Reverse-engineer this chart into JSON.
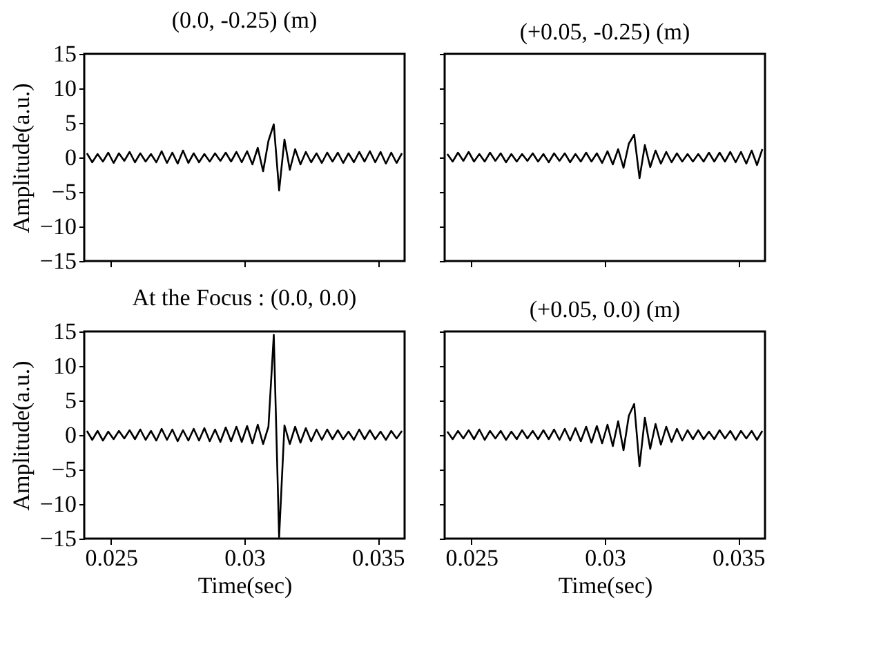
{
  "chart_data": [
    {
      "type": "line",
      "title": "(0.0, -0.25) (m)",
      "ylabel": "Amplitude(a.u.)",
      "tick_labels": "y",
      "xlim": [
        0.024,
        0.036
      ],
      "xticks": [
        0.025,
        0.03,
        0.035
      ],
      "ylim": [
        -15,
        15
      ],
      "yticks": [
        -15,
        -10,
        -5,
        0,
        5,
        10,
        15
      ],
      "x": [
        0.0241,
        0.0243,
        0.0245,
        0.0247,
        0.0249,
        0.0251,
        0.0253,
        0.0255,
        0.0257,
        0.0259,
        0.0261,
        0.0263,
        0.0265,
        0.0267,
        0.0269,
        0.0271,
        0.0273,
        0.0275,
        0.0277,
        0.0279,
        0.0281,
        0.0283,
        0.0285,
        0.0287,
        0.0289,
        0.0291,
        0.0293,
        0.0295,
        0.0297,
        0.0299,
        0.0301,
        0.0303,
        0.0305,
        0.0307,
        0.0309,
        0.0311,
        0.0313,
        0.0315,
        0.0317,
        0.0319,
        0.0321,
        0.0323,
        0.0325,
        0.0327,
        0.0329,
        0.0331,
        0.0333,
        0.0335,
        0.0337,
        0.0339,
        0.0341,
        0.0343,
        0.0345,
        0.0347,
        0.0349,
        0.0351,
        0.0353,
        0.0355,
        0.0357,
        0.0359
      ],
      "series": [
        {
          "color": "#000000",
          "values": [
            0.6,
            -0.7,
            0.5,
            -0.6,
            0.7,
            -0.8,
            0.6,
            -0.5,
            0.8,
            -0.7,
            0.6,
            -0.6,
            0.5,
            -0.7,
            0.9,
            -0.8,
            0.7,
            -0.9,
            1.0,
            -0.8,
            0.6,
            -0.7,
            0.5,
            -0.6,
            0.6,
            -0.5,
            0.7,
            -0.6,
            0.8,
            -0.7,
            0.9,
            -1.0,
            1.4,
            -2.0,
            2.4,
            4.8,
            -4.8,
            2.6,
            -1.8,
            1.2,
            -1.0,
            0.8,
            -0.7,
            0.6,
            -0.8,
            0.7,
            -0.6,
            0.7,
            -0.8,
            0.6,
            -0.7,
            0.8,
            -0.6,
            0.9,
            -0.7,
            0.8,
            -0.9,
            0.7,
            -0.8,
            0.6
          ]
        }
      ]
    },
    {
      "type": "line",
      "title": "(+0.05, -0.25) (m)",
      "tick_labels": false,
      "xlim": [
        0.024,
        0.036
      ],
      "xticks": [
        0.025,
        0.03,
        0.035
      ],
      "ylim": [
        -15,
        15
      ],
      "yticks": [
        -15,
        -10,
        -5,
        0,
        5,
        10,
        15
      ],
      "x": [
        0.0241,
        0.0243,
        0.0245,
        0.0247,
        0.0249,
        0.0251,
        0.0253,
        0.0255,
        0.0257,
        0.0259,
        0.0261,
        0.0263,
        0.0265,
        0.0267,
        0.0269,
        0.0271,
        0.0273,
        0.0275,
        0.0277,
        0.0279,
        0.0281,
        0.0283,
        0.0285,
        0.0287,
        0.0289,
        0.0291,
        0.0293,
        0.0295,
        0.0297,
        0.0299,
        0.0301,
        0.0303,
        0.0305,
        0.0307,
        0.0309,
        0.0311,
        0.0313,
        0.0315,
        0.0317,
        0.0319,
        0.0321,
        0.0323,
        0.0325,
        0.0327,
        0.0329,
        0.0331,
        0.0333,
        0.0335,
        0.0337,
        0.0339,
        0.0341,
        0.0343,
        0.0345,
        0.0347,
        0.0349,
        0.0351,
        0.0353,
        0.0355,
        0.0357,
        0.0359
      ],
      "series": [
        {
          "color": "#000000",
          "values": [
            0.5,
            -0.6,
            0.7,
            -0.5,
            0.8,
            -0.6,
            0.5,
            -0.6,
            0.7,
            -0.5,
            0.6,
            -0.7,
            0.5,
            -0.6,
            0.5,
            -0.5,
            0.6,
            -0.6,
            0.5,
            -0.7,
            0.6,
            -0.5,
            0.6,
            -0.7,
            0.5,
            -0.6,
            0.7,
            -0.6,
            0.6,
            -0.8,
            0.9,
            -1.0,
            1.2,
            -1.5,
            2.0,
            3.3,
            -3.0,
            1.8,
            -1.4,
            1.0,
            -0.9,
            0.8,
            -0.7,
            0.6,
            -0.6,
            0.5,
            -0.6,
            0.5,
            -0.6,
            0.7,
            -0.6,
            0.7,
            -0.6,
            0.8,
            -0.7,
            0.8,
            -0.9,
            1.0,
            -1.1,
            1.2
          ]
        }
      ]
    },
    {
      "type": "line",
      "title": "At the Focus : (0.0, 0.0)",
      "ylabel": "Amplitude(a.u.)",
      "xlabel": "Time(sec)",
      "xlim": [
        0.024,
        0.036
      ],
      "xticks": [
        0.025,
        0.03,
        0.035
      ],
      "ylim": [
        -15,
        15
      ],
      "yticks": [
        -15,
        -10,
        -5,
        0,
        5,
        10,
        15
      ],
      "x": [
        0.0241,
        0.0243,
        0.0245,
        0.0247,
        0.0249,
        0.0251,
        0.0253,
        0.0255,
        0.0257,
        0.0259,
        0.0261,
        0.0263,
        0.0265,
        0.0267,
        0.0269,
        0.0271,
        0.0273,
        0.0275,
        0.0277,
        0.0279,
        0.0281,
        0.0283,
        0.0285,
        0.0287,
        0.0289,
        0.0291,
        0.0293,
        0.0295,
        0.0297,
        0.0299,
        0.0301,
        0.0303,
        0.0305,
        0.0307,
        0.0309,
        0.0311,
        0.0313,
        0.0315,
        0.0317,
        0.0319,
        0.0321,
        0.0323,
        0.0325,
        0.0327,
        0.0329,
        0.0331,
        0.0333,
        0.0335,
        0.0337,
        0.0339,
        0.0341,
        0.0343,
        0.0345,
        0.0347,
        0.0349,
        0.0351,
        0.0353,
        0.0355,
        0.0357,
        0.0359
      ],
      "series": [
        {
          "color": "#000000",
          "values": [
            0.6,
            -0.7,
            0.6,
            -0.8,
            0.5,
            -0.6,
            0.6,
            -0.5,
            0.7,
            -0.6,
            0.8,
            -0.7,
            0.6,
            -0.8,
            0.9,
            -0.7,
            0.8,
            -0.9,
            0.7,
            -0.8,
            0.9,
            -0.8,
            1.0,
            -0.9,
            0.8,
            -1.0,
            1.1,
            -0.9,
            1.2,
            -1.0,
            1.3,
            -1.2,
            1.5,
            -1.3,
            1.2,
            14.5,
            -14.8,
            1.4,
            -1.3,
            1.2,
            -1.1,
            1.0,
            -0.9,
            0.8,
            -0.7,
            0.8,
            -0.6,
            0.7,
            -0.6,
            0.5,
            -0.7,
            0.8,
            -0.6,
            0.7,
            -0.6,
            0.5,
            -0.7,
            0.6,
            -0.5,
            0.6
          ]
        }
      ]
    },
    {
      "type": "line",
      "title": "(+0.05, 0.0) (m)",
      "xlabel": "Time(sec)",
      "tick_labels": "x",
      "xlim": [
        0.024,
        0.036
      ],
      "xticks": [
        0.025,
        0.03,
        0.035
      ],
      "ylim": [
        -15,
        15
      ],
      "yticks": [
        -15,
        -10,
        -5,
        0,
        5,
        10,
        15
      ],
      "x": [
        0.0241,
        0.0243,
        0.0245,
        0.0247,
        0.0249,
        0.0251,
        0.0253,
        0.0255,
        0.0257,
        0.0259,
        0.0261,
        0.0263,
        0.0265,
        0.0267,
        0.0269,
        0.0271,
        0.0273,
        0.0275,
        0.0277,
        0.0279,
        0.0281,
        0.0283,
        0.0285,
        0.0287,
        0.0289,
        0.0291,
        0.0293,
        0.0295,
        0.0297,
        0.0299,
        0.0301,
        0.0303,
        0.0305,
        0.0307,
        0.0309,
        0.0311,
        0.0313,
        0.0315,
        0.0317,
        0.0319,
        0.0321,
        0.0323,
        0.0325,
        0.0327,
        0.0329,
        0.0331,
        0.0333,
        0.0335,
        0.0337,
        0.0339,
        0.0341,
        0.0343,
        0.0345,
        0.0347,
        0.0349,
        0.0351,
        0.0353,
        0.0355,
        0.0357,
        0.0359
      ],
      "series": [
        {
          "color": "#000000",
          "values": [
            0.5,
            -0.6,
            0.6,
            -0.5,
            0.7,
            -0.6,
            0.8,
            -0.7,
            0.6,
            -0.5,
            0.6,
            -0.7,
            0.5,
            -0.6,
            0.7,
            -0.5,
            0.6,
            -0.6,
            0.7,
            -0.6,
            0.8,
            -0.7,
            0.9,
            -0.8,
            1.0,
            -0.9,
            1.2,
            -1.1,
            1.3,
            -1.2,
            1.5,
            -1.6,
            2.0,
            -2.2,
            2.8,
            4.5,
            -4.5,
            2.5,
            -2.0,
            1.6,
            -1.4,
            1.2,
            -1.0,
            0.9,
            -0.8,
            0.7,
            -0.6,
            0.7,
            -0.6,
            0.5,
            -0.6,
            0.7,
            -0.5,
            0.6,
            -0.7,
            0.6,
            -0.5,
            0.6,
            -0.7,
            0.6
          ]
        }
      ]
    }
  ]
}
